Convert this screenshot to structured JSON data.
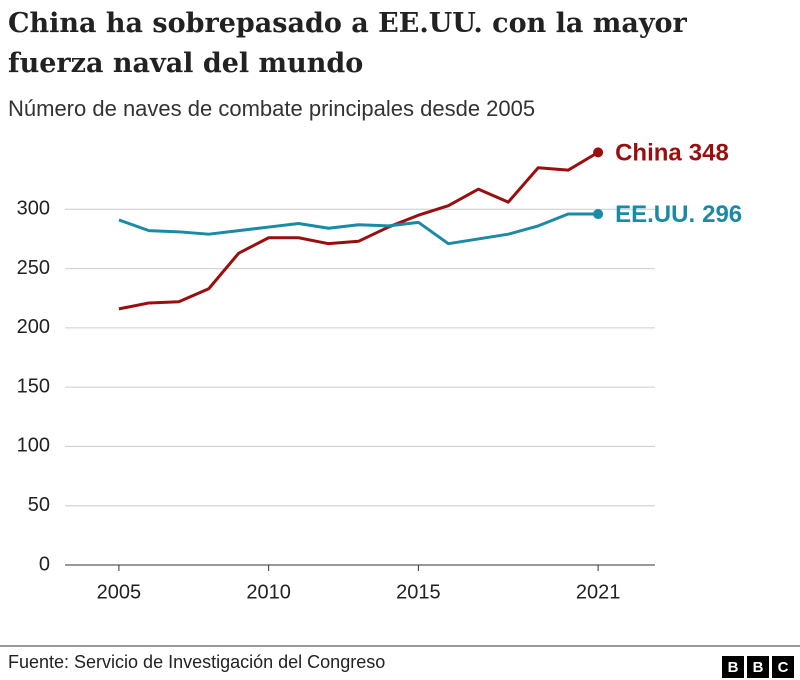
{
  "chart_data": {
    "type": "line",
    "title": [
      "China ha sobrepasado a EE.UU. con la mayor",
      "fuerza naval del mundo"
    ],
    "subtitle": "Número de naves de combate principales desde 2005",
    "x": [
      2005,
      2006,
      2007,
      2008,
      2009,
      2010,
      2011,
      2012,
      2013,
      2014,
      2015,
      2016,
      2017,
      2018,
      2019,
      2020,
      2021
    ],
    "series": [
      {
        "name": "China",
        "color": "#990f0f",
        "values": [
          216,
          221,
          222,
          233,
          263,
          276,
          276,
          271,
          273,
          285,
          295,
          303,
          317,
          306,
          335,
          333,
          348
        ]
      },
      {
        "name": "EE.UU.",
        "color": "#1a8aa6",
        "values": [
          291,
          282,
          281,
          279,
          282,
          285,
          288,
          284,
          287,
          286,
          289,
          271,
          275,
          279,
          286,
          296,
          296
        ]
      }
    ],
    "xlim": [
      2003.2,
      2022.9
    ],
    "xticks": [
      2005,
      2010,
      2015,
      2021
    ],
    "ylim": [
      0,
      350
    ],
    "yticks": [
      0,
      50,
      100,
      150,
      200,
      250,
      300
    ],
    "grid": true,
    "source": "Fuente: Servicio de Investigación del Congreso",
    "logo": [
      "B",
      "B",
      "C"
    ]
  }
}
